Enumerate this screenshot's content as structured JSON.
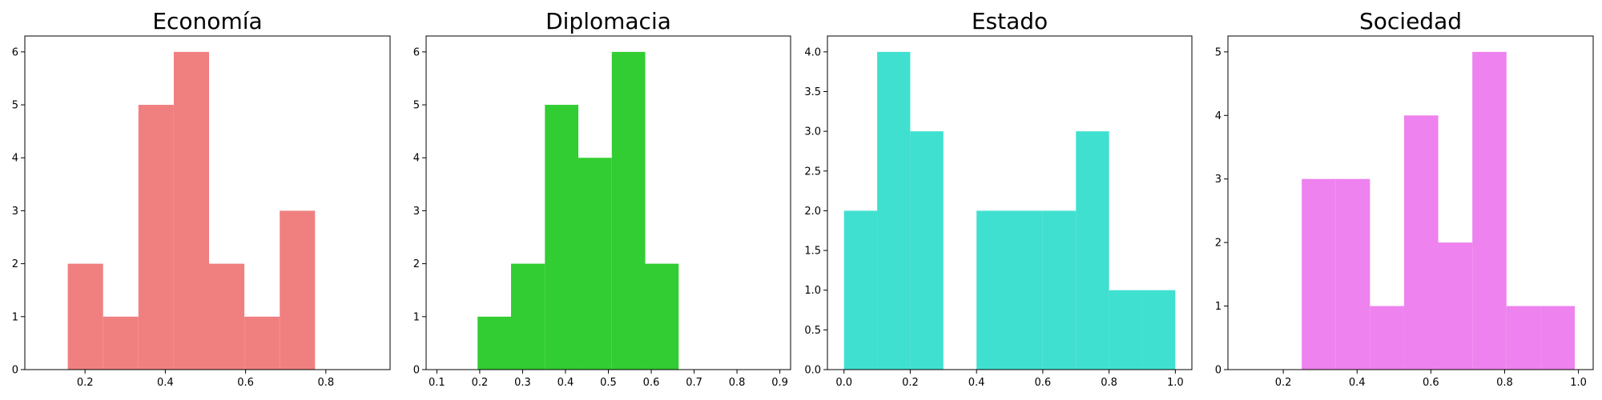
{
  "chart_data": [
    {
      "type": "histogram",
      "title": "Economía",
      "color": "#f08080",
      "xlim": [
        0.05,
        0.96
      ],
      "ylim": [
        0,
        6.3
      ],
      "xticks": [
        0.2,
        0.4,
        0.6,
        0.8
      ],
      "xtick_labels": [
        "0.2",
        "0.4",
        "0.6",
        "0.8"
      ],
      "yticks": [
        0,
        1,
        2,
        3,
        4,
        5,
        6
      ],
      "ytick_labels": [
        "0",
        "1",
        "2",
        "3",
        "4",
        "5",
        "6"
      ],
      "bins": [
        {
          "x0": 0.157,
          "x1": 0.245,
          "count": 2
        },
        {
          "x0": 0.245,
          "x1": 0.333,
          "count": 1
        },
        {
          "x0": 0.333,
          "x1": 0.421,
          "count": 5
        },
        {
          "x0": 0.421,
          "x1": 0.509,
          "count": 6
        },
        {
          "x0": 0.509,
          "x1": 0.597,
          "count": 2
        },
        {
          "x0": 0.597,
          "x1": 0.685,
          "count": 1
        },
        {
          "x0": 0.685,
          "x1": 0.773,
          "count": 3
        }
      ]
    },
    {
      "type": "histogram",
      "title": "Diplomacia",
      "color": "#32cd32",
      "xlim": [
        0.075,
        0.925
      ],
      "ylim": [
        0,
        6.3
      ],
      "xticks": [
        0.1,
        0.2,
        0.3,
        0.4,
        0.5,
        0.6,
        0.7,
        0.8,
        0.9
      ],
      "xtick_labels": [
        "0.1",
        "0.2",
        "0.3",
        "0.4",
        "0.5",
        "0.6",
        "0.7",
        "0.8",
        "0.9"
      ],
      "yticks": [
        0,
        1,
        2,
        3,
        4,
        5,
        6
      ],
      "ytick_labels": [
        "0",
        "1",
        "2",
        "3",
        "4",
        "5",
        "6"
      ],
      "bins": [
        {
          "x0": 0.195,
          "x1": 0.273,
          "count": 1
        },
        {
          "x0": 0.273,
          "x1": 0.352,
          "count": 2
        },
        {
          "x0": 0.352,
          "x1": 0.43,
          "count": 5
        },
        {
          "x0": 0.43,
          "x1": 0.508,
          "count": 4
        },
        {
          "x0": 0.508,
          "x1": 0.586,
          "count": 6
        },
        {
          "x0": 0.586,
          "x1": 0.664,
          "count": 2
        }
      ]
    },
    {
      "type": "histogram",
      "title": "Estado",
      "color": "#40e0d0",
      "xlim": [
        -0.05,
        1.05
      ],
      "ylim": [
        0,
        4.2
      ],
      "xticks": [
        0.0,
        0.2,
        0.4,
        0.6,
        0.8,
        1.0
      ],
      "xtick_labels": [
        "0.0",
        "0.2",
        "0.4",
        "0.6",
        "0.8",
        "1.0"
      ],
      "yticks": [
        0,
        0.5,
        1.0,
        1.5,
        2.0,
        2.5,
        3.0,
        3.5,
        4.0
      ],
      "ytick_labels": [
        "0.0",
        "0.5",
        "1.0",
        "1.5",
        "2.0",
        "2.5",
        "3.0",
        "3.5",
        "4.0"
      ],
      "bins": [
        {
          "x0": 0.0,
          "x1": 0.1,
          "count": 2
        },
        {
          "x0": 0.1,
          "x1": 0.2,
          "count": 4
        },
        {
          "x0": 0.2,
          "x1": 0.3,
          "count": 3
        },
        {
          "x0": 0.3,
          "x1": 0.4,
          "count": 0
        },
        {
          "x0": 0.4,
          "x1": 0.5,
          "count": 2
        },
        {
          "x0": 0.5,
          "x1": 0.6,
          "count": 2
        },
        {
          "x0": 0.6,
          "x1": 0.7,
          "count": 2
        },
        {
          "x0": 0.7,
          "x1": 0.8,
          "count": 3
        },
        {
          "x0": 0.8,
          "x1": 0.9,
          "count": 1
        },
        {
          "x0": 0.9,
          "x1": 1.0,
          "count": 1
        }
      ]
    },
    {
      "type": "histogram",
      "title": "Sociedad",
      "color": "#ee82ee",
      "xlim": [
        0.05,
        1.04
      ],
      "ylim": [
        0,
        5.25
      ],
      "xticks": [
        0.2,
        0.4,
        0.6,
        0.8,
        1.0
      ],
      "xtick_labels": [
        "0.2",
        "0.4",
        "0.6",
        "0.8",
        "1.0"
      ],
      "yticks": [
        0,
        1,
        2,
        3,
        4,
        5
      ],
      "ytick_labels": [
        "0",
        "1",
        "2",
        "3",
        "4",
        "5"
      ],
      "bins": [
        {
          "x0": 0.25,
          "x1": 0.3425,
          "count": 3
        },
        {
          "x0": 0.3425,
          "x1": 0.435,
          "count": 3
        },
        {
          "x0": 0.435,
          "x1": 0.5275,
          "count": 1
        },
        {
          "x0": 0.5275,
          "x1": 0.62,
          "count": 4
        },
        {
          "x0": 0.62,
          "x1": 0.7125,
          "count": 2
        },
        {
          "x0": 0.7125,
          "x1": 0.805,
          "count": 5
        },
        {
          "x0": 0.805,
          "x1": 0.8975,
          "count": 1
        },
        {
          "x0": 0.8975,
          "x1": 0.99,
          "count": 1
        }
      ]
    }
  ]
}
